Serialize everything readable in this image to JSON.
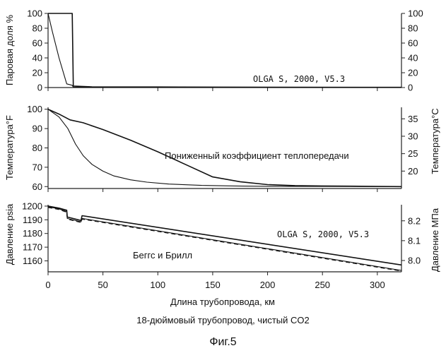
{
  "figure_label": "Фиг.5",
  "caption": "18-дюймовый трубопровод, чистый CO2",
  "x_axis_label": "Длина трубопровода, км",
  "chart_data": [
    {
      "type": "line",
      "panel": "vapor",
      "ylabel": "Паровая доля %",
      "y2label": "",
      "xlim": [
        0,
        322
      ],
      "ylim": [
        0,
        100
      ],
      "x_ticks": [
        0,
        50,
        100,
        150,
        200,
        250,
        300
      ],
      "y_ticks": [
        0,
        20,
        40,
        60,
        80,
        100
      ],
      "y2_ticks": [
        0,
        20,
        40,
        60,
        80,
        100
      ],
      "annotations": [
        {
          "text": "OLGA S, 2000, V5.3"
        }
      ],
      "series": [
        {
          "x": [
            0,
            22,
            23,
            40,
            100,
            200,
            322
          ],
          "y": [
            100,
            100,
            2,
            1,
            0.8,
            0.5,
            0.3
          ]
        },
        {
          "x": [
            0,
            4,
            10,
            17,
            22,
            23,
            322
          ],
          "y": [
            100,
            75,
            40,
            5,
            3,
            0.5,
            0.2
          ]
        }
      ]
    },
    {
      "type": "line",
      "panel": "temperature",
      "ylabel": "Температура°F",
      "y2label": "Температура°C",
      "xlim": [
        0,
        322
      ],
      "ylim": [
        59,
        101
      ],
      "y2lim": [
        15,
        38.3
      ],
      "x_ticks": [
        0,
        50,
        100,
        150,
        200,
        250,
        300
      ],
      "y_ticks": [
        60,
        70,
        80,
        90,
        100
      ],
      "y2_ticks": [
        20,
        25,
        30,
        35
      ],
      "annotations": [
        {
          "text": "Пониженный коэффициент теплопередачи"
        }
      ],
      "series": [
        {
          "x": [
            0,
            10,
            20,
            32,
            50,
            75,
            100,
            125,
            150,
            175,
            200,
            225,
            250,
            275,
            300,
            322
          ],
          "y": [
            100,
            97.5,
            94.5,
            93,
            89.5,
            84,
            78,
            71.5,
            65,
            62.5,
            61,
            60.5,
            60.3,
            60.2,
            60.1,
            60
          ]
        },
        {
          "x": [
            0,
            10,
            18,
            25,
            32,
            40,
            50,
            60,
            75,
            90,
            110,
            140,
            170,
            200,
            250,
            300,
            322
          ],
          "y": [
            100,
            96,
            90,
            82,
            76,
            71.5,
            68,
            65.5,
            63.5,
            62.3,
            61.3,
            60.6,
            60.3,
            60.15,
            60.05,
            60,
            60
          ]
        }
      ]
    },
    {
      "type": "line",
      "panel": "pressure",
      "ylabel": "Давление psia",
      "y2label": "Давление МПа",
      "xlim": [
        0,
        322
      ],
      "ylim": [
        1152,
        1201
      ],
      "y2lim": [
        7.943,
        8.281
      ],
      "x_ticks": [
        0,
        50,
        100,
        150,
        200,
        250,
        300
      ],
      "y_ticks": [
        1160,
        1170,
        1180,
        1190,
        1200
      ],
      "y2_ticks": [
        "8.0",
        "8.1",
        "8.2"
      ],
      "annotations": [
        {
          "text": "OLGA S, 2000, V5.3"
        },
        {
          "text": "Беггс и Брилл"
        }
      ],
      "series": [
        {
          "x": [
            0,
            10,
            17,
            17.5,
            30,
            31,
            322
          ],
          "y": [
            1200,
            1198.5,
            1197,
            1192,
            1189.5,
            1193,
            1157
          ]
        },
        {
          "x": [
            0,
            10,
            17,
            17.5,
            30,
            31,
            322
          ],
          "y": [
            1199.5,
            1198,
            1196,
            1191,
            1188.5,
            1191,
            1153
          ]
        },
        {
          "x": [
            0,
            10,
            17,
            17.5,
            30,
            31,
            322
          ],
          "y": [
            1199,
            1197.5,
            1195.5,
            1190.5,
            1188,
            1190.5,
            1152.5
          ],
          "dashed": true
        }
      ]
    }
  ]
}
